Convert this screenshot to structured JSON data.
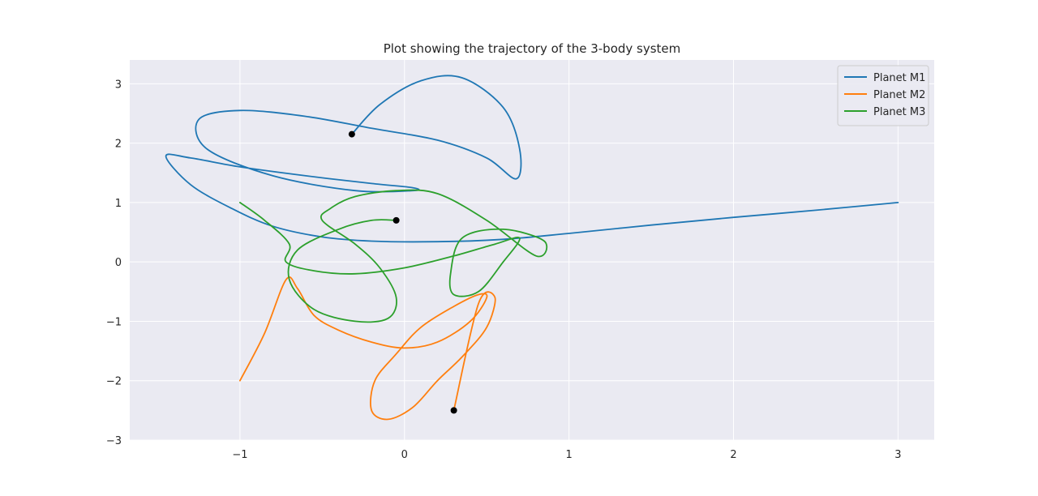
{
  "chart_data": {
    "type": "line",
    "title": "Plot showing the trajectory of the 3-body system",
    "xlabel": "",
    "ylabel": "",
    "xlim": [
      -1.67,
      3.22
    ],
    "ylim": [
      -3.0,
      3.4
    ],
    "x_ticks": [
      -1,
      0,
      1,
      2,
      3
    ],
    "x_tick_labels": [
      "−1",
      "0",
      "1",
      "2",
      "3"
    ],
    "y_ticks": [
      -3,
      -2,
      -1,
      0,
      1,
      2,
      3
    ],
    "y_tick_labels": [
      "−3",
      "−2",
      "−1",
      "0",
      "1",
      "2",
      "3"
    ],
    "grid": true,
    "legend_position": "top-right",
    "colors": {
      "background": "#eaeaf2",
      "grid": "#ffffff",
      "marker": "#000000"
    },
    "series": [
      {
        "name": "Planet M1",
        "color": "#1f77b4",
        "x": [
          3.0,
          2.5,
          2.0,
          1.5,
          1.0,
          0.6,
          0.2,
          -0.2,
          -0.5,
          -0.8,
          -1.05,
          -1.3,
          -1.45,
          -1.3,
          -1.0,
          -0.6,
          -0.2,
          0.05,
          0.05,
          -0.3,
          -0.8,
          -1.2,
          -1.25,
          -1.0,
          -0.6,
          -0.2,
          0.2,
          0.5,
          0.68,
          0.7,
          0.6,
          0.35,
          0.1,
          -0.15,
          -0.32
        ],
        "y": [
          1.0,
          0.87,
          0.75,
          0.62,
          0.48,
          0.38,
          0.34,
          0.35,
          0.42,
          0.6,
          0.9,
          1.3,
          1.78,
          1.75,
          1.6,
          1.45,
          1.32,
          1.25,
          1.2,
          1.2,
          1.45,
          1.9,
          2.4,
          2.55,
          2.45,
          2.25,
          2.05,
          1.75,
          1.4,
          1.9,
          2.6,
          3.1,
          3.05,
          2.65,
          2.15
        ]
      },
      {
        "name": "Planet M2",
        "color": "#ff7f0e",
        "x": [
          -1.0,
          -0.85,
          -0.72,
          -0.65,
          -0.55,
          -0.4,
          -0.2,
          0.0,
          0.2,
          0.4,
          0.5,
          0.45,
          0.3,
          0.1,
          -0.05,
          -0.18,
          -0.2,
          -0.1,
          0.05,
          0.2,
          0.35,
          0.5,
          0.55,
          0.45,
          0.3
        ],
        "y": [
          -2.0,
          -1.2,
          -0.3,
          -0.45,
          -0.9,
          -1.15,
          -1.35,
          -1.45,
          -1.35,
          -1.0,
          -0.6,
          -0.55,
          -0.75,
          -1.1,
          -1.55,
          -2.0,
          -2.5,
          -2.65,
          -2.45,
          -2.0,
          -1.6,
          -1.1,
          -0.6,
          -0.7,
          -2.5
        ]
      },
      {
        "name": "Planet M3",
        "color": "#2ca02c",
        "x": [
          -1.0,
          -0.85,
          -0.7,
          -0.72,
          -0.55,
          -0.3,
          0.0,
          0.3,
          0.55,
          0.7,
          0.6,
          0.45,
          0.3,
          0.28,
          0.35,
          0.6,
          0.85,
          0.8,
          0.5,
          0.2,
          -0.05,
          -0.3,
          -0.45,
          -0.5,
          -0.3,
          -0.15,
          -0.05,
          -0.1,
          -0.3,
          -0.55,
          -0.7,
          -0.65,
          -0.4,
          -0.2,
          -0.05
        ],
        "y": [
          1.0,
          0.7,
          0.3,
          0.0,
          -0.15,
          -0.2,
          -0.1,
          0.1,
          0.3,
          0.4,
          0.0,
          -0.5,
          -0.55,
          -0.2,
          0.4,
          0.55,
          0.35,
          0.1,
          0.7,
          1.15,
          1.2,
          1.1,
          0.9,
          0.7,
          0.3,
          -0.1,
          -0.6,
          -0.95,
          -1.0,
          -0.8,
          -0.3,
          0.2,
          0.55,
          0.7,
          0.7
        ]
      }
    ],
    "end_markers": [
      {
        "x": -0.32,
        "y": 2.15
      },
      {
        "x": 0.3,
        "y": -2.5
      },
      {
        "x": -0.05,
        "y": 0.7
      }
    ]
  }
}
